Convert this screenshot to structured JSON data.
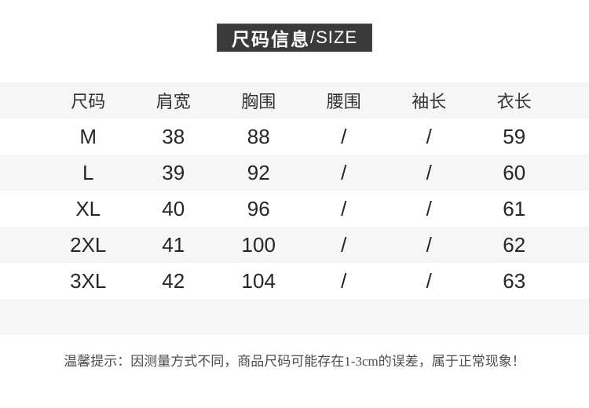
{
  "title": {
    "cn": "尺码信息",
    "en": "/SIZE"
  },
  "table": {
    "columns": [
      "尺码",
      "肩宽",
      "胸围",
      "腰围",
      "袖长",
      "衣长"
    ],
    "rows": [
      [
        "M",
        "38",
        "88",
        "/",
        "/",
        "59"
      ],
      [
        "L",
        "39",
        "92",
        "/",
        "/",
        "60"
      ],
      [
        "XL",
        "40",
        "96",
        "/",
        "/",
        "61"
      ],
      [
        "2XL",
        "41",
        "100",
        "/",
        "/",
        "62"
      ],
      [
        "3XL",
        "42",
        "104",
        "/",
        "/",
        "63"
      ]
    ]
  },
  "note": {
    "text": "温馨提示：因测量方式不同，商品尺码可能存在1-3cm的误差，属于正常现象！"
  },
  "colors": {
    "title_box_bg": "#3a3a3a",
    "title_text": "#ffffff",
    "stripe_bg": "#f6f6f6",
    "header_text": "#333333",
    "data_text": "#262626",
    "note_text": "#4c4c4c"
  }
}
